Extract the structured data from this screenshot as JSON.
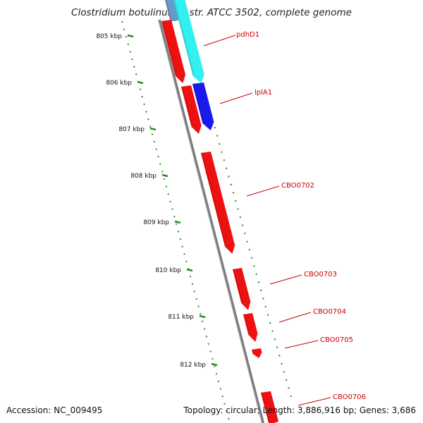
{
  "title": "Clostridium botulinum A str. ATCC 3502, complete genome",
  "accession_label": "Accession: NC_009495",
  "summary_label": "Topology: circular; Length: 3,886,916 bp; Genes: 3,686",
  "colors": {
    "backbone": "#7a7a7a",
    "forward_gene": "#ee1111",
    "ruler": "#2a8a2a",
    "label_text": "#cc0000",
    "pdhD1": "#33f0f0",
    "lplA1": "#1a1aee",
    "partial_top": "#6699cc"
  },
  "ruler": {
    "ticks": [
      "805 kbp",
      "806 kbp",
      "807 kbp",
      "808 kbp",
      "809 kbp",
      "810 kbp",
      "811 kbp",
      "812 kbp"
    ]
  },
  "genes": [
    {
      "label": "pdhD1"
    },
    {
      "label": "lplA1"
    },
    {
      "label": "CBO0702"
    },
    {
      "label": "CBO0703"
    },
    {
      "label": "CBO0704"
    },
    {
      "label": "CBO0705"
    },
    {
      "label": "CBO0706"
    }
  ]
}
